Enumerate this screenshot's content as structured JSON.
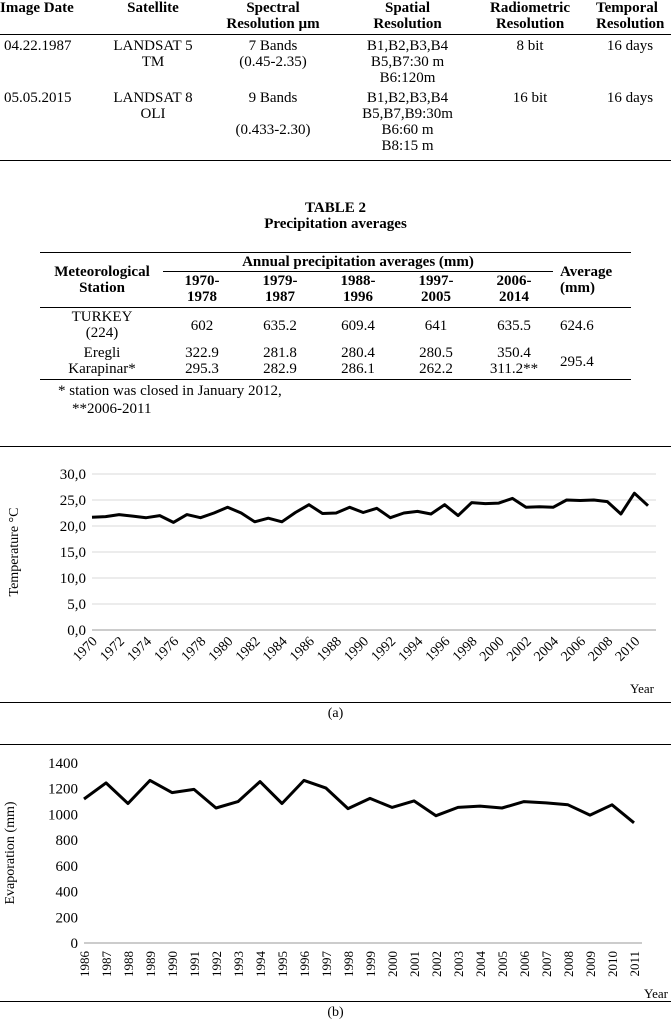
{
  "table1": {
    "headers": [
      [
        "Image Date"
      ],
      [
        "Satellite"
      ],
      [
        "Spectral",
        "Resolution µm"
      ],
      [
        "Spatial",
        "Resolution"
      ],
      [
        "Radiometric",
        "Resolution"
      ],
      [
        "Temporal",
        "Resolution"
      ]
    ],
    "rows": [
      {
        "date": "04.22.1987",
        "satellite": [
          "LANDSAT 5",
          "TM"
        ],
        "spectral": [
          "7 Bands",
          "(0.45-2.35)"
        ],
        "spatial": [
          "B1,B2,B3,B4",
          "B5,B7:30 m",
          "B6:120m"
        ],
        "radiometric": "8 bit",
        "temporal": "16 days"
      },
      {
        "date": "05.05.2015",
        "satellite": [
          "LANDSAT 8",
          "OLI"
        ],
        "spectral": [
          "9 Bands",
          "",
          "(0.433-2.30)"
        ],
        "spatial": [
          "B1,B2,B3,B4",
          "B5,B7,B9:30m",
          "B6:60 m",
          "B8:15 m"
        ],
        "radiometric": "16 bit",
        "temporal": "16 days"
      }
    ]
  },
  "table2": {
    "title": "TABLE 2",
    "subtitle": "Precipitation averages",
    "station_header": [
      "Meteorological",
      "Station"
    ],
    "group_header": "Annual precipitation averages (mm)",
    "periods": [
      [
        "1970-",
        "1978"
      ],
      [
        "1979-",
        "1987"
      ],
      [
        "1988-",
        "1996"
      ],
      [
        "1997-",
        "2005"
      ],
      [
        "2006-",
        "2014"
      ]
    ],
    "average_header": [
      "Average",
      "(mm)"
    ],
    "rows": [
      {
        "station": [
          "TURKEY",
          "(224)"
        ],
        "values": [
          "602",
          "635.2",
          "609.4",
          "641",
          "635.5"
        ],
        "average": "624.6"
      },
      {
        "station": [
          "Eregli",
          "Karapinar*"
        ],
        "values_top": [
          "322.9",
          "281.8",
          "280.4",
          "280.5",
          "350.4"
        ],
        "values_bottom": [
          "295.3",
          "282.9",
          "286.1",
          "262.2",
          "311.2**"
        ],
        "average": "295.4"
      }
    ],
    "notes": [
      "* station was closed in January 2012,",
      "**2006-2011"
    ]
  },
  "chart_data": [
    {
      "type": "line",
      "caption": "(a)",
      "xlabel": "Year",
      "ylabel": "Temperature °C",
      "ylim": [
        0,
        30
      ],
      "y_ticks": [
        "0,0",
        "5,0",
        "10,0",
        "15,0",
        "20,0",
        "25,0",
        "30,0"
      ],
      "x_ticks": [
        "1970",
        "1972",
        "1974",
        "1976",
        "1978",
        "1980",
        "1982",
        "1984",
        "1986",
        "1988",
        "1990",
        "1992",
        "1994",
        "1996",
        "1998",
        "2000",
        "2002",
        "2004",
        "2006",
        "2008",
        "2010"
      ],
      "grid": "horizontal",
      "x": [
        1970,
        1971,
        1972,
        1973,
        1974,
        1975,
        1976,
        1977,
        1978,
        1979,
        1980,
        1981,
        1982,
        1983,
        1984,
        1985,
        1986,
        1987,
        1988,
        1989,
        1990,
        1991,
        1992,
        1993,
        1994,
        1995,
        1996,
        1997,
        1998,
        1999,
        2000,
        2001,
        2002,
        2003,
        2004,
        2005,
        2006,
        2007,
        2008,
        2009,
        2010,
        2011
      ],
      "values": [
        21.7,
        21.8,
        22.2,
        21.9,
        21.6,
        22.0,
        20.7,
        22.2,
        21.6,
        22.5,
        23.6,
        22.5,
        20.8,
        21.5,
        20.8,
        22.6,
        24.1,
        22.4,
        22.5,
        23.6,
        22.6,
        23.4,
        21.6,
        22.5,
        22.8,
        22.3,
        24.1,
        22.0,
        24.5,
        24.3,
        24.4,
        25.3,
        23.6,
        23.7,
        23.6,
        25.0,
        24.9,
        25.0,
        24.7,
        22.3,
        26.3,
        23.9
      ]
    },
    {
      "type": "line",
      "caption": "(b)",
      "xlabel": "Year",
      "ylabel": "Evaporation (mm)",
      "ylim": [
        0,
        1400
      ],
      "y_ticks": [
        "0",
        "200",
        "400",
        "600",
        "800",
        "1000",
        "1200",
        "1400"
      ],
      "x_ticks": [
        "1986",
        "1987",
        "1988",
        "1989",
        "1990",
        "1991",
        "1992",
        "1993",
        "1994",
        "1995",
        "1996",
        "1997",
        "1998",
        "1999",
        "2000",
        "2001",
        "2002",
        "2003",
        "2004",
        "2005",
        "2006",
        "2007",
        "2008",
        "2009",
        "2010",
        "2011"
      ],
      "grid": "none",
      "x": [
        1986,
        1987,
        1988,
        1989,
        1990,
        1991,
        1992,
        1993,
        1994,
        1995,
        1996,
        1997,
        1998,
        1999,
        2000,
        2001,
        2002,
        2003,
        2004,
        2005,
        2006,
        2007,
        2008,
        2009,
        2010,
        2011
      ],
      "values": [
        1120,
        1245,
        1085,
        1265,
        1170,
        1195,
        1050,
        1100,
        1255,
        1085,
        1265,
        1205,
        1045,
        1125,
        1055,
        1105,
        990,
        1055,
        1065,
        1050,
        1100,
        1090,
        1075,
        995,
        1075,
        935
      ]
    }
  ]
}
